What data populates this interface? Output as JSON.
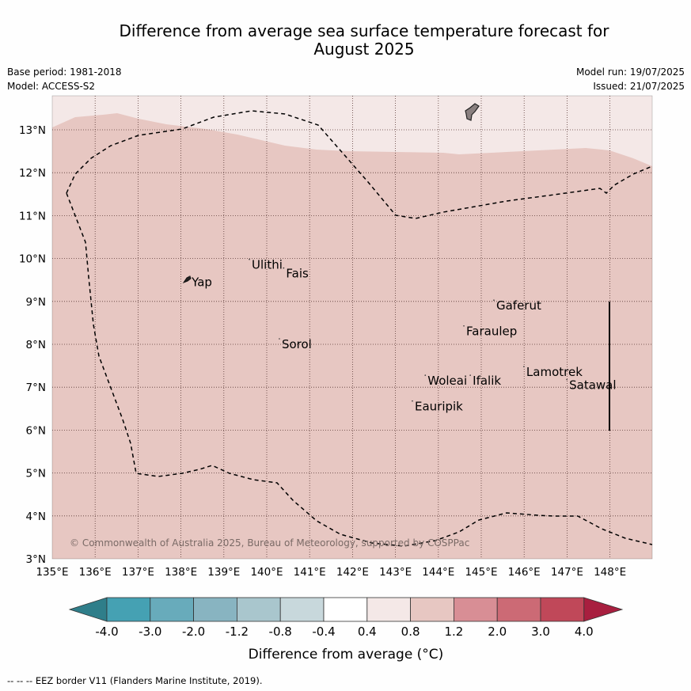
{
  "title": {
    "line1": "Difference from average sea surface temperature forecast for",
    "line2": "August 2025"
  },
  "meta": {
    "base_period": "Base period: 1981-2018",
    "model": "Model: ACCESS-S2",
    "model_run": "Model run: 19/07/2025",
    "issued": "Issued: 21/07/2025"
  },
  "map": {
    "lon_ticks": [
      "135°E",
      "136°E",
      "137°E",
      "138°E",
      "139°E",
      "140°E",
      "141°E",
      "142°E",
      "143°E",
      "144°E",
      "145°E",
      "146°E",
      "147°E",
      "148°E"
    ],
    "lat_ticks": [
      "3°N",
      "4°N",
      "5°N",
      "6°N",
      "7°N",
      "8°N",
      "9°N",
      "10°N",
      "11°N",
      "12°N",
      "13°N"
    ],
    "extent": {
      "lon_min": 135,
      "lon_max": 149,
      "lat_min": 3,
      "lat_max": 13.8
    },
    "fill_colors": {
      "anomaly_0_4_to_0_8": "#f4e8e7",
      "anomaly_0_8_to_1_2": "#e7c7c2",
      "land": "#8a8080"
    },
    "places": [
      {
        "name": "Yap",
        "lon": 138.25,
        "lat": 9.45
      },
      {
        "name": "Ulithi",
        "lon": 139.65,
        "lat": 9.85
      },
      {
        "name": "Fais",
        "lon": 140.45,
        "lat": 9.65
      },
      {
        "name": "Sorol",
        "lon": 140.35,
        "lat": 8.0
      },
      {
        "name": "Gaferut",
        "lon": 145.35,
        "lat": 8.9
      },
      {
        "name": "Faraulep",
        "lon": 144.65,
        "lat": 8.3
      },
      {
        "name": "Woleai",
        "lon": 143.75,
        "lat": 7.15
      },
      {
        "name": "Ifalik",
        "lon": 144.8,
        "lat": 7.15
      },
      {
        "name": "Lamotrek",
        "lon": 146.05,
        "lat": 7.35
      },
      {
        "name": "Satawal",
        "lon": 147.05,
        "lat": 7.05
      },
      {
        "name": "Eauripik",
        "lon": 143.45,
        "lat": 6.55
      }
    ],
    "copyright": "© Commonwealth of Australia 2025, Bureau of Meteorology, supported by COSPPac"
  },
  "colorbar": {
    "labels": [
      "-4.0",
      "-3.0",
      "-2.0",
      "-1.2",
      "-0.8",
      "-0.4",
      "0.4",
      "0.8",
      "1.2",
      "2.0",
      "3.0",
      "4.0"
    ],
    "colors": [
      "#2f7e8a",
      "#45a1b3",
      "#68abbb",
      "#88b4c1",
      "#a9c6cd",
      "#c8d8dc",
      "#ffffff",
      "#f4e8e7",
      "#e7c7c2",
      "#d88e95",
      "#cc6a75",
      "#c04859",
      "#a81f3f"
    ],
    "label": "Difference from average (°C)"
  },
  "footnote": "--  --  -- EEZ border V11 (Flanders Marine Institute, 2019)."
}
